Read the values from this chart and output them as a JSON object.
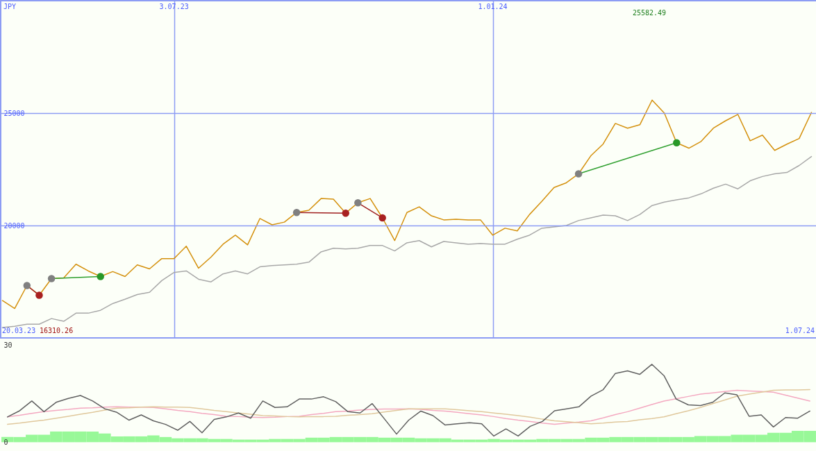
{
  "chart_data": [
    {
      "type": "line",
      "ylabel": "JPY",
      "x": [
        "2023-03-27",
        "2023-04-03",
        "2023-04-10",
        "2023-04-17",
        "2023-04-24",
        "2023-05-01",
        "2023-05-08",
        "2023-05-15",
        "2023-05-22",
        "2023-05-29",
        "2023-06-05",
        "2023-06-12",
        "2023-06-19",
        "2023-06-26",
        "2023-07-03",
        "2023-07-10",
        "2023-07-17",
        "2023-07-24",
        "2023-07-31",
        "2023-08-07",
        "2023-08-14",
        "2023-08-21",
        "2023-08-28",
        "2023-09-04",
        "2023-09-11",
        "2023-09-18",
        "2023-09-25",
        "2023-10-02",
        "2023-10-09",
        "2023-10-16",
        "2023-10-23",
        "2023-10-30",
        "2023-11-06",
        "2023-11-13",
        "2023-11-20",
        "2023-11-27",
        "2023-12-04",
        "2023-12-11",
        "2023-12-18",
        "2023-12-25",
        "2024-01-01",
        "2024-01-08",
        "2024-01-15",
        "2024-01-22",
        "2024-01-29",
        "2024-02-05",
        "2024-02-12",
        "2024-02-19",
        "2024-02-26",
        "2024-03-04",
        "2024-03-11",
        "2024-03-18",
        "2024-03-25",
        "2024-04-01",
        "2024-04-08",
        "2024-04-15",
        "2024-04-22",
        "2024-04-29",
        "2024-05-06",
        "2024-05-13",
        "2024-05-20",
        "2024-05-27",
        "2024-06-03",
        "2024-06-10",
        "2024-06-17",
        "2024-06-24",
        "2024-07-01"
      ],
      "xlim": [
        "2023-03-26",
        "2024-07-04"
      ],
      "ylim": [
        15000,
        30000
      ],
      "xticks": [
        {
          "value": "2023-07-03",
          "label": "3.07.23"
        },
        {
          "value": "2024-01-01",
          "label": "1.01.24"
        }
      ],
      "yticks": [
        20000,
        25000
      ],
      "grid": true,
      "series": [
        {
          "type": "line",
          "color": "#a8a8a8",
          "values": [
            15460,
            15520,
            15610,
            15610,
            15860,
            15740,
            16100,
            16100,
            16230,
            16530,
            16720,
            16930,
            17030,
            17550,
            17910,
            17980,
            17610,
            17490,
            17850,
            17980,
            17850,
            18160,
            18220,
            18250,
            18280,
            18370,
            18830,
            18990,
            18960,
            18990,
            19110,
            19110,
            18870,
            19230,
            19330,
            19050,
            19290,
            19230,
            19170,
            19200,
            19170,
            19170,
            19390,
            19570,
            19880,
            19940,
            20000,
            20220,
            20340,
            20460,
            20430,
            20220,
            20490,
            20890,
            21040,
            21140,
            21230,
            21410,
            21660,
            21840,
            21630,
            21990,
            22180,
            22300,
            22360,
            22670,
            23070
          ]
        },
        {
          "type": "line",
          "color": "#d4900c",
          "values": [
            16660,
            16310,
            17330,
            16900,
            17640,
            17670,
            18280,
            17980,
            17730,
            17950,
            17730,
            18250,
            18070,
            18530,
            18530,
            19080,
            18100,
            18590,
            19170,
            19570,
            19140,
            20310,
            20030,
            20150,
            20580,
            20680,
            21200,
            21170,
            20550,
            21010,
            21200,
            20340,
            19330,
            20580,
            20830,
            20430,
            20250,
            20280,
            20250,
            20250,
            19570,
            19880,
            19760,
            20490,
            21070,
            21690,
            21900,
            22300,
            23100,
            23620,
            24540,
            24330,
            24480,
            25580,
            25000,
            23680,
            23440,
            23740,
            24330,
            24660,
            24940,
            23770,
            24020,
            23340,
            23620,
            23870,
            25030
          ]
        },
        {
          "type": "line",
          "color": "#a02020",
          "x": [
            "2023-04-10",
            "2023-04-17"
          ],
          "values": [
            17330,
            16900
          ]
        },
        {
          "type": "line",
          "color": "#30a030",
          "x": [
            "2023-04-24",
            "2023-05-22"
          ],
          "values": [
            17640,
            17730
          ]
        },
        {
          "type": "line",
          "color": "#a02020",
          "x": [
            "2023-09-11",
            "2023-10-09"
          ],
          "values": [
            20580,
            20550
          ]
        },
        {
          "type": "line",
          "color": "#a02020",
          "x": [
            "2023-10-16",
            "2023-10-30"
          ],
          "values": [
            21010,
            20340
          ]
        },
        {
          "type": "line",
          "color": "#30a030",
          "x": [
            "2024-02-19",
            "2024-04-15"
          ],
          "values": [
            22300,
            23680
          ]
        },
        {
          "type": "scatter",
          "marker": "circle",
          "color": "#808080",
          "x": [
            "2023-04-10",
            "2023-04-24",
            "2023-09-11",
            "2023-10-16",
            "2024-02-19"
          ],
          "values": [
            17330,
            17640,
            20580,
            21010,
            22300
          ]
        },
        {
          "type": "scatter",
          "marker": "circle",
          "color": "#a82020",
          "x": [
            "2023-04-17",
            "2023-10-09",
            "2023-10-30"
          ],
          "values": [
            16900,
            20550,
            20340
          ]
        },
        {
          "type": "scatter",
          "marker": "circle",
          "color": "#289828",
          "x": [
            "2023-05-22",
            "2024-04-15"
          ],
          "values": [
            17730,
            23680
          ]
        }
      ],
      "annotations": [
        "20.03.23",
        "16310.26",
        "25582.49",
        "1.07.24"
      ]
    },
    {
      "type": "line",
      "tick_labels": "y",
      "categories": [
        null,
        null,
        null,
        null,
        null,
        null,
        null,
        null,
        null,
        null,
        null,
        null,
        null,
        null,
        null,
        null,
        null,
        null,
        null,
        null,
        null,
        null,
        null,
        null,
        null,
        null,
        null,
        null,
        null,
        null,
        null,
        null,
        null,
        null,
        null,
        null,
        null,
        null,
        null,
        null,
        null,
        null,
        null,
        null,
        null,
        null,
        null,
        null,
        null,
        null,
        null,
        null,
        null,
        null,
        null,
        null,
        null,
        null,
        null,
        null,
        null,
        null,
        null,
        null,
        null,
        null,
        null
      ],
      "ylim": [
        -1,
        31.5
      ],
      "yticks": [
        0,
        30
      ],
      "series": [
        {
          "type": "bar",
          "color": "#98f898",
          "values": [
            1.6,
            1.6,
            2.3,
            2.3,
            3.3,
            3.3,
            3.3,
            3.3,
            2.7,
            1.8,
            1.8,
            1.8,
            2.1,
            1.6,
            1.2,
            1.2,
            1.2,
            1.0,
            1.0,
            0.8,
            0.8,
            0.8,
            1.0,
            1.0,
            1.0,
            1.4,
            1.4,
            1.6,
            1.6,
            1.6,
            1.6,
            1.4,
            1.4,
            1.4,
            1.2,
            1.2,
            1.2,
            0.8,
            0.8,
            0.8,
            1.0,
            0.8,
            0.8,
            0.8,
            1.0,
            1.0,
            1.0,
            1.0,
            1.4,
            1.4,
            1.6,
            1.6,
            1.6,
            1.6,
            1.6,
            1.6,
            1.6,
            1.9,
            1.9,
            1.9,
            2.3,
            2.3,
            2.3,
            2.9,
            2.9,
            3.5,
            3.5
          ]
        },
        {
          "type": "line",
          "color": "#f4a8c0",
          "values": [
            7.8,
            8.3,
            8.9,
            9.4,
            9.8,
            10.1,
            10.5,
            10.6,
            10.8,
            10.9,
            10.8,
            10.8,
            10.7,
            10.3,
            9.8,
            9.4,
            8.9,
            8.5,
            8.0,
            7.9,
            7.7,
            7.6,
            7.7,
            7.9,
            8.0,
            8.5,
            8.9,
            9.4,
            9.6,
            9.9,
            10.1,
            10.2,
            10.2,
            10.3,
            10.1,
            9.8,
            9.6,
            9.2,
            8.8,
            8.4,
            7.9,
            7.3,
            6.8,
            6.4,
            5.9,
            5.5,
            5.9,
            6.2,
            6.6,
            7.5,
            8.5,
            9.4,
            10.5,
            11.6,
            12.7,
            13.4,
            14.1,
            14.8,
            15.2,
            15.6,
            16.0,
            15.8,
            15.6,
            15.4,
            14.5,
            13.6,
            12.7
          ]
        },
        {
          "type": "line",
          "color": "#e0c89c",
          "values": [
            5.5,
            5.9,
            6.4,
            6.8,
            7.4,
            8.0,
            8.6,
            9.2,
            9.9,
            10.5,
            10.6,
            10.8,
            10.9,
            10.8,
            10.8,
            10.7,
            10.3,
            9.8,
            9.4,
            9.0,
            8.6,
            8.2,
            8.1,
            7.9,
            7.8,
            7.9,
            7.9,
            8.0,
            8.3,
            8.5,
            8.8,
            9.3,
            9.8,
            10.3,
            10.3,
            10.3,
            10.3,
            10.0,
            9.7,
            9.4,
            9.0,
            8.6,
            8.2,
            7.7,
            7.1,
            6.6,
            6.3,
            6.0,
            5.7,
            5.9,
            6.2,
            6.4,
            6.9,
            7.3,
            7.8,
            8.8,
            9.7,
            10.7,
            11.9,
            13.0,
            14.2,
            14.8,
            15.4,
            16.0,
            16.1,
            16.1,
            16.2
          ]
        },
        {
          "type": "line",
          "color": "#606060",
          "values": [
            7.8,
            9.7,
            12.7,
            9.4,
            12.3,
            13.5,
            14.4,
            12.7,
            10.3,
            9.2,
            6.8,
            8.4,
            6.6,
            5.5,
            3.7,
            6.4,
            2.9,
            7.0,
            7.8,
            9.0,
            7.4,
            12.7,
            10.7,
            10.9,
            13.3,
            13.3,
            14.0,
            12.5,
            9.4,
            9.0,
            11.9,
            7.2,
            2.5,
            6.8,
            9.6,
            8.2,
            5.3,
            5.7,
            6.0,
            5.7,
            1.9,
            4.1,
            1.9,
            4.9,
            6.4,
            9.7,
            10.3,
            10.9,
            14.2,
            16.2,
            21.2,
            22.0,
            20.9,
            24.0,
            20.5,
            13.3,
            11.5,
            11.3,
            12.3,
            15.2,
            14.6,
            8.0,
            8.4,
            4.7,
            7.6,
            7.4,
            9.6
          ]
        }
      ]
    }
  ]
}
